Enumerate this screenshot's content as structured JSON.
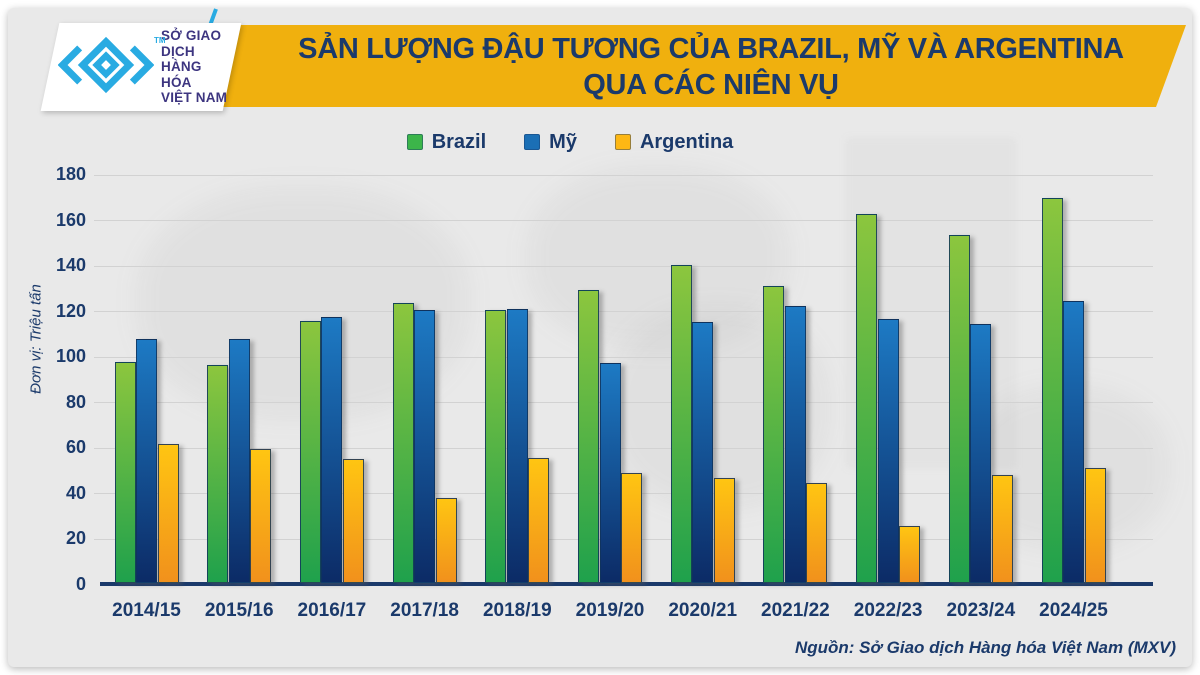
{
  "colors": {
    "navy_text": "#1b3a6b",
    "banner_gold": "#f0b00e",
    "teal_accent": "#29abe2",
    "canvas_bg": "#e9e9e9",
    "logo_text": "#3d3580",
    "axis_line": "#1b3a6b",
    "gridline": "#d2d2d2"
  },
  "header": {
    "title_line1": "SẢN LƯỢNG ĐẬU TƯƠNG CỦA BRAZIL, MỸ VÀ ARGENTINA",
    "title_line2": "QUA CÁC NIÊN VỤ",
    "logo": {
      "line1": "SỞ GIAO DỊCH",
      "line2": "HÀNG HÓA",
      "line3": "VIỆT NAM",
      "trademark": "TM"
    }
  },
  "chart_data": {
    "type": "bar",
    "title": "Sản lượng đậu tương của Brazil, Mỹ và Argentina qua các niên vụ",
    "unit_label": "Đơn vị: Triệu tấn",
    "categories": [
      "2014/15",
      "2015/16",
      "2016/17",
      "2017/18",
      "2018/19",
      "2019/20",
      "2020/21",
      "2021/22",
      "2022/23",
      "2023/24",
      "2024/25"
    ],
    "series": [
      {
        "name": "Brazil",
        "legend_color": "#3cb54a",
        "color_top": "#8cc63e",
        "color_bottom": "#1fa14c",
        "values": [
          97,
          95.5,
          115,
          123,
          120,
          128.5,
          139.5,
          130.5,
          162,
          153,
          169
        ]
      },
      {
        "name": "Mỹ",
        "legend_color": "#1b6fb5",
        "color_top": "#1d7ac4",
        "color_bottom": "#0c2b66",
        "values": [
          107,
          107,
          117,
          120,
          120.5,
          96.5,
          114.5,
          121.5,
          116,
          113.5,
          124
        ]
      },
      {
        "name": "Argentina",
        "legend_color": "#fdb714",
        "color_top": "#ffc512",
        "color_bottom": "#f1911c",
        "values": [
          61,
          58.8,
          54.5,
          37.5,
          55,
          48.5,
          46,
          44,
          25,
          47.5,
          50.5
        ]
      }
    ],
    "ylim": [
      0,
      180
    ],
    "ytick_step": 20,
    "yticks": [
      0,
      20,
      40,
      60,
      80,
      100,
      120,
      140,
      160,
      180
    ],
    "grid": true,
    "legend_position": "top"
  },
  "footer": {
    "source": "Nguồn: Sở Giao dịch Hàng hóa Việt Nam (MXV)"
  }
}
